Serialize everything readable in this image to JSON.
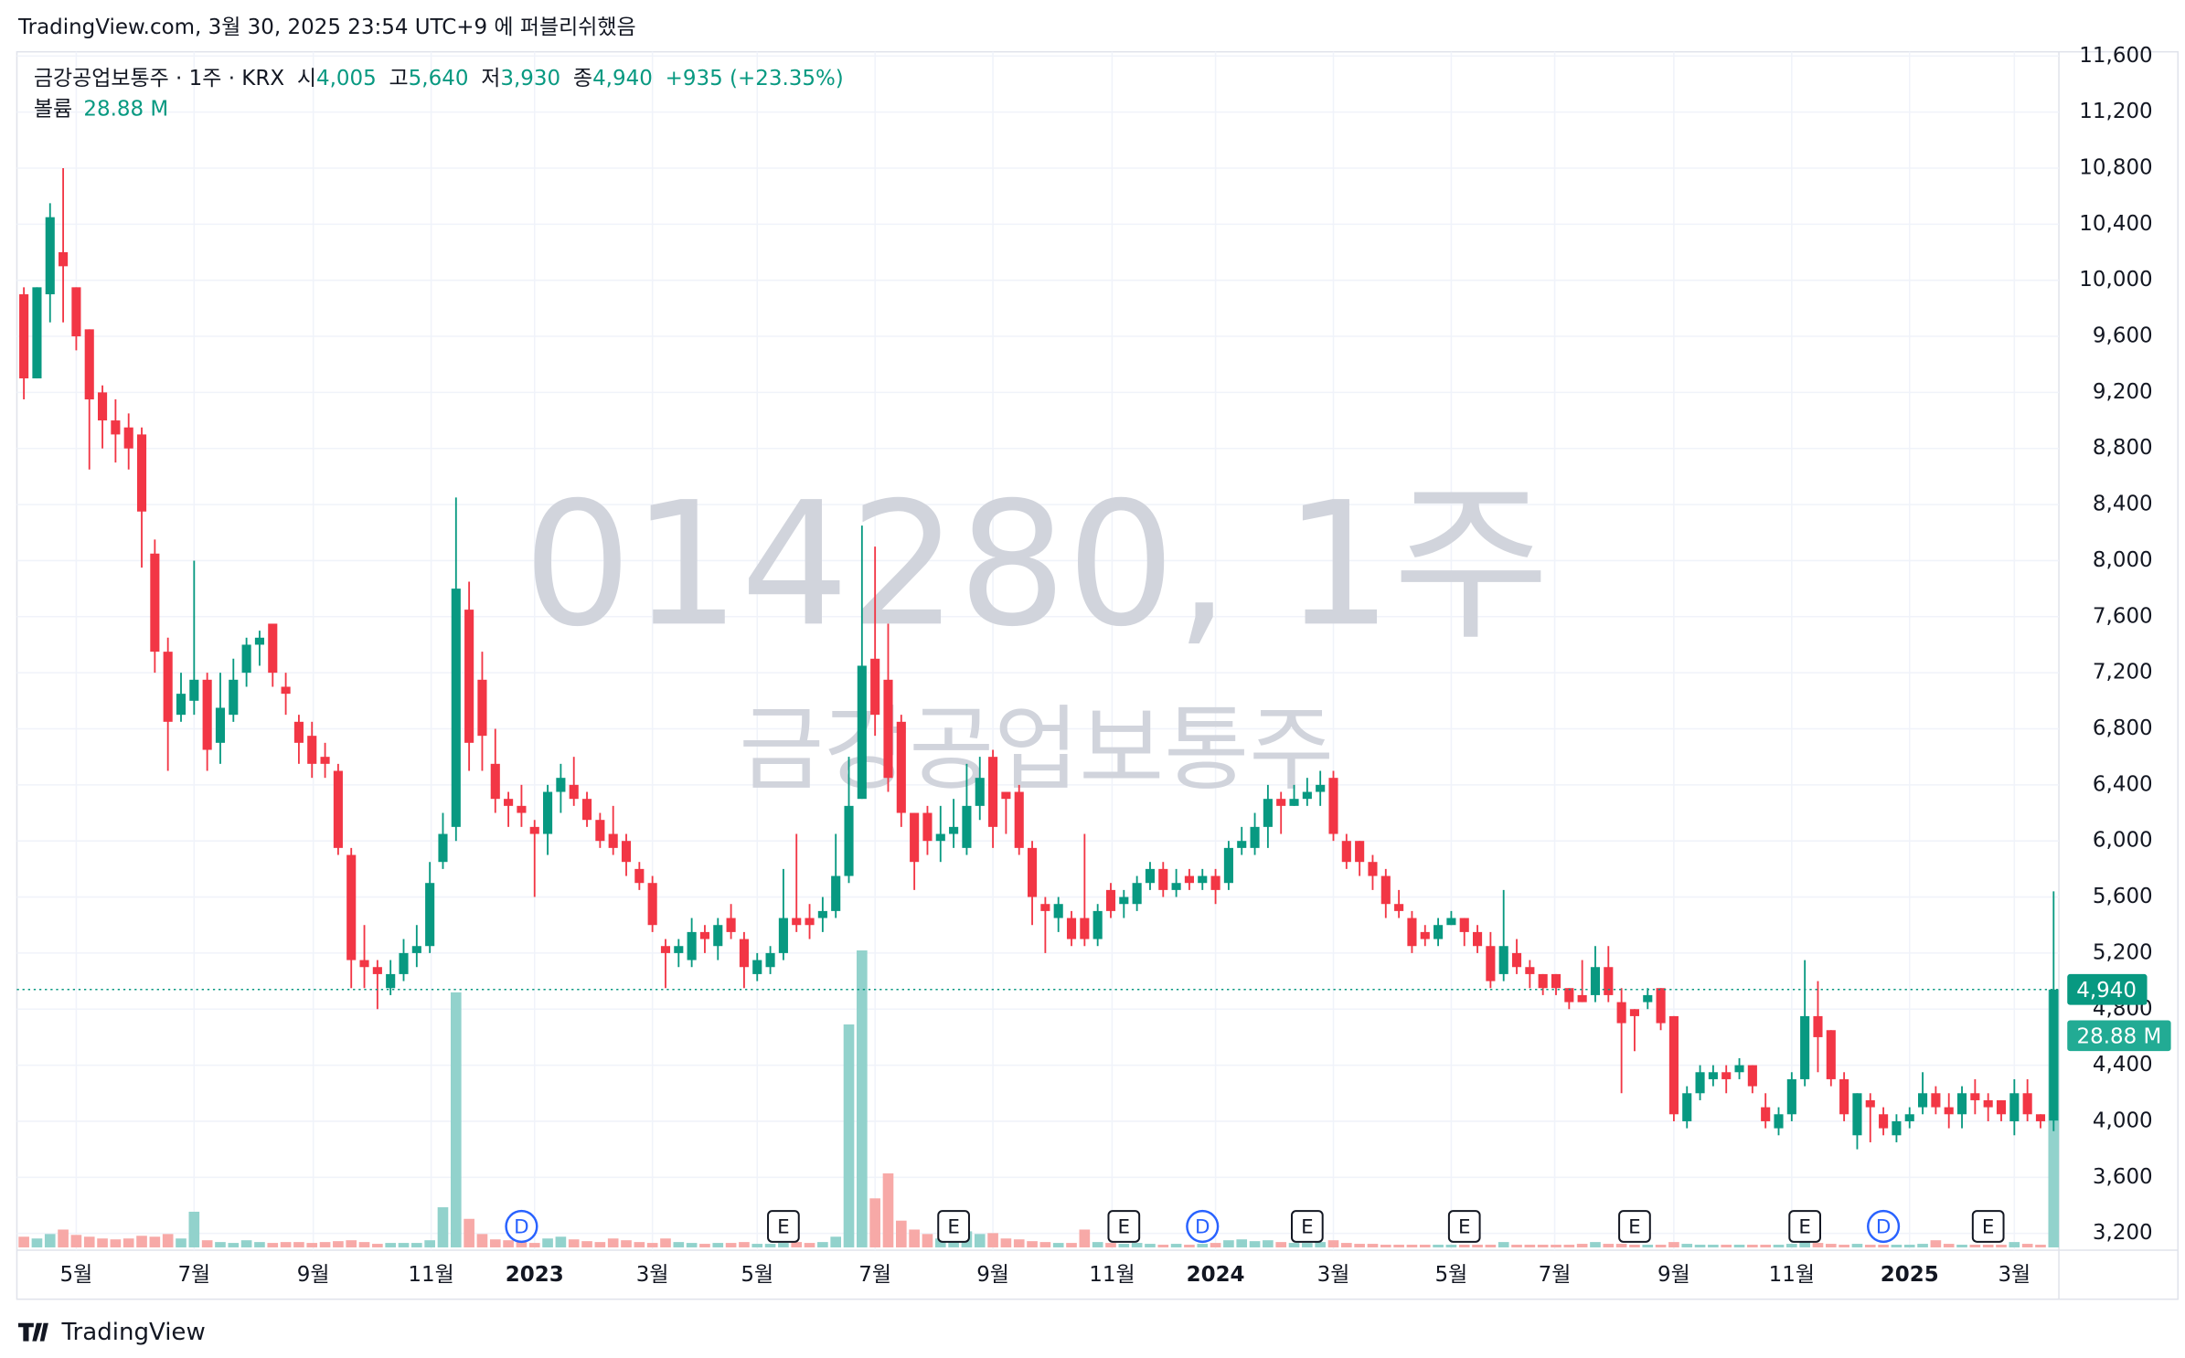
{
  "header": "TradingView.com, 3월 30, 2025 23:54 UTC+9 에 퍼블리쉬했음",
  "footer": "TradingView",
  "chart_data": {
    "type": "candlestick",
    "watermark": "014280, 1주",
    "watermark_sub": "금강공업보통주",
    "legend": {
      "symbol": "금강공업보통주 · 1주 · KRX",
      "items": [
        {
          "label": "시",
          "value": "4,005"
        },
        {
          "label": "고",
          "value": "5,640"
        },
        {
          "label": "저",
          "value": "3,930"
        },
        {
          "label": "종",
          "value": "4,940"
        }
      ],
      "change": "+935 (+23.35%)",
      "volume_label": "볼륨",
      "volume_value": "28.88 M"
    },
    "last_price": 4940,
    "last_price_label": "4,940",
    "last_volume_label": "28.88 M",
    "up_color": "#089981",
    "down_color": "#f23645",
    "up_volume_color": "#92d2cc",
    "down_volume_color": "#f7a9a7",
    "grid": true,
    "ylim": [
      3200,
      11600
    ],
    "yticks": [
      {
        "value": 3200,
        "label": "3,200"
      },
      {
        "value": 3600,
        "label": "3,600"
      },
      {
        "value": 4000,
        "label": "4,000"
      },
      {
        "value": 4400,
        "label": "4,400"
      },
      {
        "value": 4800,
        "label": "4,800"
      },
      {
        "value": 5200,
        "label": "5,200"
      },
      {
        "value": 5600,
        "label": "5,600"
      },
      {
        "value": 6000,
        "label": "6,000"
      },
      {
        "value": 6400,
        "label": "6,400"
      },
      {
        "value": 6800,
        "label": "6,800"
      },
      {
        "value": 7200,
        "label": "7,200"
      },
      {
        "value": 7600,
        "label": "7,600"
      },
      {
        "value": 8000,
        "label": "8,000"
      },
      {
        "value": 8400,
        "label": "8,400"
      },
      {
        "value": 8800,
        "label": "8,800"
      },
      {
        "value": 9200,
        "label": "9,200"
      },
      {
        "value": 9600,
        "label": "9,600"
      },
      {
        "value": 10000,
        "label": "10,000"
      },
      {
        "value": 10400,
        "label": "10,400"
      },
      {
        "value": 10800,
        "label": "10,800"
      },
      {
        "value": 11200,
        "label": "11,200"
      },
      {
        "value": 11600,
        "label": "11,600"
      }
    ],
    "xticks": [
      {
        "value": 4,
        "label": "5월"
      },
      {
        "value": 13,
        "label": "7월"
      },
      {
        "value": 22.1,
        "label": "9월"
      },
      {
        "value": 31.1,
        "label": "11월"
      },
      {
        "value": 39,
        "label": "2023"
      },
      {
        "value": 48,
        "label": "3월"
      },
      {
        "value": 56,
        "label": "5월"
      },
      {
        "value": 65,
        "label": "7월"
      },
      {
        "value": 74,
        "label": "9월"
      },
      {
        "value": 83.1,
        "label": "11월"
      },
      {
        "value": 91,
        "label": "2024"
      },
      {
        "value": 100,
        "label": "3월"
      },
      {
        "value": 109,
        "label": "5월"
      },
      {
        "value": 116.9,
        "label": "7월"
      },
      {
        "value": 126,
        "label": "9월"
      },
      {
        "value": 135,
        "label": "11월"
      },
      {
        "value": 144,
        "label": "2025"
      },
      {
        "value": 152,
        "label": "3월"
      }
    ],
    "events": [
      {
        "label": "D",
        "x": 38
      },
      {
        "label": "E",
        "x": 58
      },
      {
        "label": "E",
        "x": 71
      },
      {
        "label": "E",
        "x": 84
      },
      {
        "label": "D",
        "x": 90
      },
      {
        "label": "E",
        "x": 98
      },
      {
        "label": "E",
        "x": 110
      },
      {
        "label": "E",
        "x": 123
      },
      {
        "label": "E",
        "x": 136
      },
      {
        "label": "D",
        "x": 142
      },
      {
        "label": "E",
        "x": 150
      }
    ],
    "open": [
      9900,
      9300,
      9900,
      10200,
      9950,
      9650,
      9200,
      9000,
      8950,
      8900,
      8050,
      7350,
      6900,
      7000,
      7150,
      6700,
      6900,
      7200,
      7400,
      7550,
      7100,
      6850,
      6750,
      6600,
      6500,
      5900,
      5150,
      5100,
      4950,
      5050,
      5200,
      5250,
      5850,
      6100,
      7650,
      7150,
      6550,
      6300,
      6250,
      6100,
      6050,
      6350,
      6400,
      6300,
      6150,
      6050,
      6000,
      5800,
      5700,
      5250,
      5200,
      5150,
      5350,
      5250,
      5450,
      5300,
      5050,
      5100,
      5200,
      5450,
      5450,
      5450,
      5500,
      5750,
      6300,
      7300,
      7150,
      6850,
      6200,
      6200,
      6000,
      6050,
      5950,
      6250,
      6600,
      6350,
      6350,
      5950,
      5550,
      5450,
      5450,
      5450,
      5300,
      5650,
      5550,
      5550,
      5700,
      5800,
      5650,
      5750,
      5700,
      5750,
      5700,
      5950,
      5950,
      6100,
      6300,
      6250,
      6300,
      6350,
      6450,
      6000,
      6000,
      5850,
      5750,
      5550,
      5450,
      5350,
      5300,
      5400,
      5450,
      5350,
      5250,
      5050,
      5200,
      5100,
      5050,
      5050,
      4950,
      4900,
      4900,
      5100,
      4850,
      4800,
      4850,
      4950,
      4750,
      4000,
      4200,
      4300,
      4350,
      4350,
      4400,
      4100,
      3950,
      4050,
      4300,
      4750,
      4650,
      4300,
      3900,
      4150,
      4050,
      3900,
      4000,
      4100,
      4200,
      4100,
      4050,
      4200,
      4150,
      4150,
      4000,
      4200,
      4050,
      4005
    ],
    "high": [
      9950,
      9950,
      10550,
      10800,
      9950,
      9650,
      9250,
      9150,
      9050,
      8950,
      8150,
      7450,
      7200,
      8000,
      7200,
      7200,
      7300,
      7450,
      7500,
      7550,
      7200,
      6900,
      6850,
      6700,
      6550,
      5950,
      5400,
      5150,
      5150,
      5300,
      5400,
      5850,
      6200,
      8450,
      7850,
      7350,
      6800,
      6350,
      6400,
      6150,
      6400,
      6550,
      6600,
      6350,
      6200,
      6250,
      6050,
      5850,
      5750,
      5300,
      5300,
      5450,
      5400,
      5450,
      5550,
      5350,
      5200,
      5250,
      5800,
      6050,
      5550,
      5600,
      6050,
      6600,
      8250,
      8100,
      7550,
      6900,
      6200,
      6250,
      6250,
      6300,
      6550,
      6600,
      6650,
      6350,
      6400,
      6000,
      5600,
      5600,
      5500,
      6050,
      5550,
      5700,
      5650,
      5750,
      5850,
      5850,
      5800,
      5800,
      5800,
      5800,
      6000,
      6100,
      6200,
      6400,
      6350,
      6400,
      6450,
      6500,
      6500,
      6050,
      6000,
      5900,
      5800,
      5650,
      5500,
      5400,
      5450,
      5500,
      5450,
      5400,
      5350,
      5650,
      5300,
      5150,
      5050,
      5050,
      4950,
      5150,
      5250,
      5250,
      4950,
      4800,
      4950,
      4950,
      4750,
      4250,
      4400,
      4400,
      4400,
      4450,
      4400,
      4200,
      4100,
      4350,
      5150,
      5000,
      4650,
      4350,
      4200,
      4200,
      4100,
      4050,
      4100,
      4350,
      4250,
      4200,
      4250,
      4300,
      4200,
      4150,
      4300,
      4300,
      4050,
      5640
    ],
    "low": [
      9150,
      9300,
      9700,
      9700,
      9500,
      8650,
      8800,
      8700,
      8650,
      7950,
      7200,
      6500,
      6850,
      6900,
      6500,
      6550,
      6850,
      7100,
      7250,
      7100,
      6900,
      6550,
      6450,
      6450,
      5900,
      4950,
      4950,
      4800,
      4900,
      5000,
      5100,
      5200,
      5800,
      6000,
      6500,
      6500,
      6200,
      6100,
      6100,
      5600,
      5900,
      6200,
      6250,
      6100,
      5950,
      5900,
      5750,
      5650,
      5350,
      4950,
      5100,
      5100,
      5200,
      5150,
      5300,
      4950,
      5000,
      5050,
      5150,
      5350,
      5300,
      5350,
      5450,
      5700,
      6300,
      6750,
      6350,
      6100,
      5650,
      5900,
      5850,
      5950,
      5900,
      6150,
      5950,
      6050,
      5900,
      5400,
      5200,
      5350,
      5250,
      5250,
      5250,
      5450,
      5450,
      5500,
      5650,
      5600,
      5600,
      5650,
      5650,
      5550,
      5650,
      5900,
      5900,
      5950,
      6050,
      6250,
      6250,
      6250,
      6000,
      5800,
      5750,
      5650,
      5450,
      5450,
      5200,
      5250,
      5250,
      5400,
      5250,
      5200,
      4950,
      5000,
      5050,
      4950,
      4900,
      4900,
      4800,
      4850,
      4850,
      4850,
      4200,
      4500,
      4800,
      4650,
      4000,
      3950,
      4150,
      4250,
      4200,
      4300,
      4200,
      3950,
      3900,
      4000,
      4250,
      4350,
      4250,
      4000,
      3800,
      3850,
      3900,
      3850,
      3950,
      4050,
      4050,
      3950,
      3950,
      4050,
      4000,
      4000,
      3900,
      4000,
      3950,
      3930
    ],
    "close": [
      9300,
      9950,
      10450,
      10100,
      9600,
      9150,
      9000,
      8900,
      8800,
      8350,
      7350,
      6850,
      7050,
      7150,
      6650,
      6950,
      7150,
      7400,
      7450,
      7200,
      7050,
      6700,
      6550,
      6550,
      5950,
      5150,
      5100,
      5050,
      5050,
      5200,
      5250,
      5700,
      6050,
      7800,
      6700,
      6750,
      6300,
      6250,
      6200,
      6050,
      6350,
      6450,
      6300,
      6150,
      6000,
      5950,
      5850,
      5700,
      5400,
      5200,
      5250,
      5350,
      5300,
      5400,
      5350,
      5100,
      5150,
      5200,
      5450,
      5400,
      5400,
      5500,
      5750,
      6250,
      7250,
      6900,
      6450,
      6200,
      5850,
      6000,
      6050,
      6100,
      6250,
      6450,
      6100,
      6300,
      5950,
      5600,
      5500,
      5550,
      5300,
      5300,
      5500,
      5500,
      5600,
      5700,
      5800,
      5650,
      5700,
      5700,
      5750,
      5650,
      5950,
      6000,
      6100,
      6300,
      6250,
      6300,
      6350,
      6400,
      6050,
      5850,
      5850,
      5750,
      5550,
      5500,
      5250,
      5300,
      5400,
      5450,
      5350,
      5250,
      5000,
      5250,
      5100,
      5050,
      4950,
      4950,
      4850,
      4850,
      5100,
      4900,
      4700,
      4750,
      4900,
      4700,
      4050,
      4200,
      4350,
      4350,
      4300,
      4400,
      4250,
      4000,
      4050,
      4300,
      4750,
      4600,
      4300,
      4050,
      4200,
      4100,
      3950,
      4000,
      4050,
      4200,
      4100,
      4050,
      4200,
      4150,
      4100,
      4050,
      4200,
      4050,
      4000,
      4940
    ],
    "volume": [
      1.2,
      1.0,
      1.5,
      2.0,
      1.4,
      1.2,
      1.0,
      0.9,
      1.0,
      1.3,
      1.2,
      1.5,
      1.0,
      4.0,
      0.8,
      0.6,
      0.5,
      0.8,
      0.6,
      0.5,
      0.6,
      0.6,
      0.5,
      0.6,
      0.7,
      0.8,
      0.6,
      0.4,
      0.5,
      0.5,
      0.5,
      0.8,
      4.5,
      28.6,
      3.2,
      1.5,
      0.9,
      0.8,
      0.7,
      0.5,
      1.0,
      1.2,
      0.9,
      0.7,
      0.6,
      1.0,
      0.8,
      0.6,
      0.5,
      1.0,
      0.6,
      0.5,
      0.4,
      0.5,
      0.5,
      0.6,
      0.4,
      0.4,
      0.5,
      0.6,
      0.5,
      0.6,
      1.2,
      25.0,
      33.3,
      5.5,
      8.3,
      3.0,
      2.0,
      1.5,
      1.0,
      1.0,
      1.8,
      1.5,
      1.6,
      1.0,
      0.9,
      0.7,
      0.6,
      0.5,
      0.5,
      2.0,
      0.6,
      0.5,
      0.4,
      0.5,
      0.4,
      0.3,
      0.4,
      0.3,
      0.4,
      0.5,
      0.8,
      0.9,
      0.7,
      0.8,
      0.6,
      0.5,
      0.5,
      0.6,
      0.8,
      0.5,
      0.4,
      0.4,
      0.3,
      0.3,
      0.3,
      0.3,
      0.3,
      0.3,
      0.3,
      0.3,
      0.3,
      0.6,
      0.3,
      0.3,
      0.3,
      0.3,
      0.3,
      0.4,
      0.6,
      0.4,
      0.4,
      0.3,
      0.3,
      0.3,
      0.6,
      0.4,
      0.3,
      0.3,
      0.3,
      0.3,
      0.3,
      0.3,
      0.3,
      0.4,
      0.9,
      0.5,
      0.4,
      0.3,
      0.4,
      0.3,
      0.3,
      0.3,
      0.3,
      0.4,
      0.8,
      0.4,
      0.3,
      0.3,
      0.3,
      0.3,
      0.6,
      0.4,
      0.3,
      28.88
    ]
  }
}
